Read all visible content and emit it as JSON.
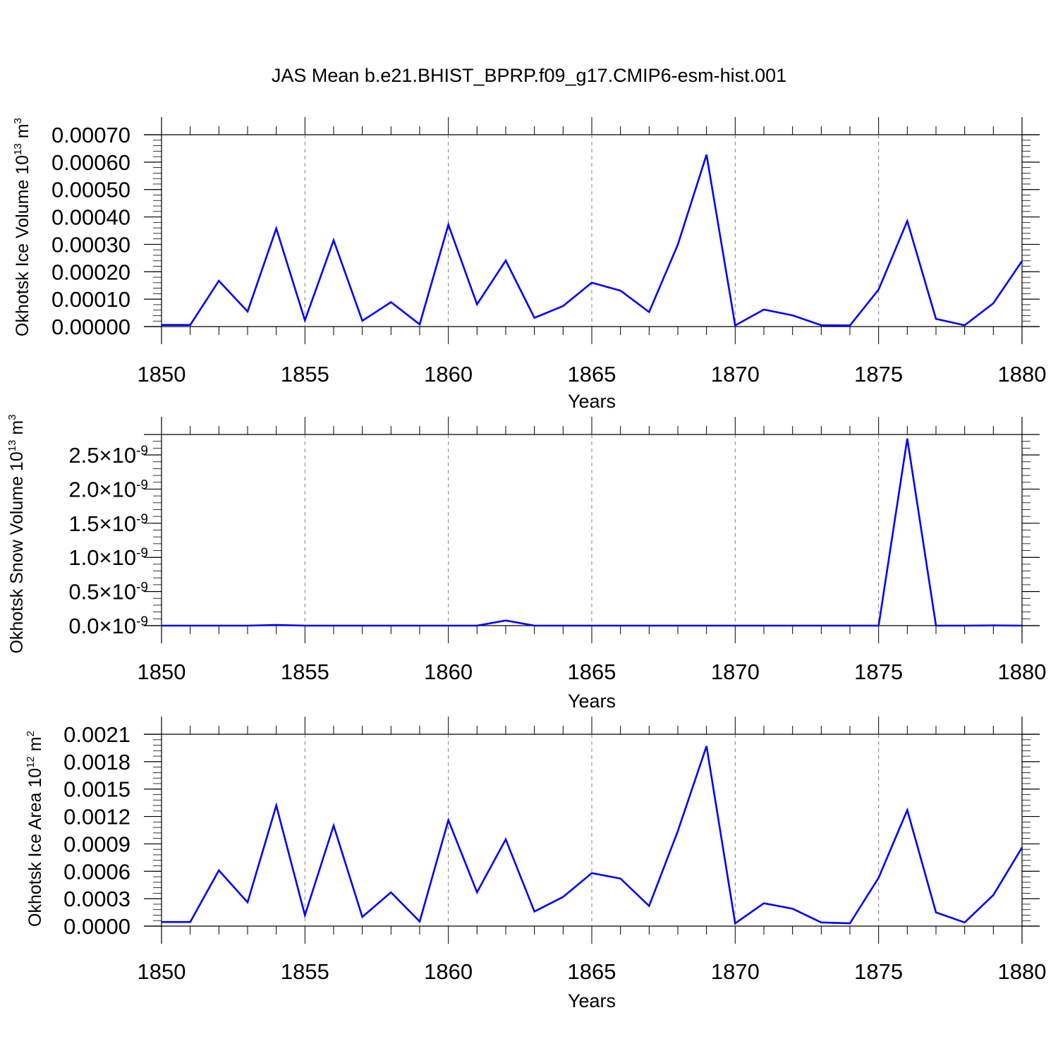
{
  "title": "JAS Mean b.e21.BHIST_BPRP.f09_g17.CMIP6-esm-hist.001",
  "colors": {
    "line": "#0000ff",
    "axis": "#000000",
    "grid": "#7f7f7f",
    "background": "#ffffff"
  },
  "chart_data": [
    {
      "type": "line",
      "ylabel": "Okhotsk Ice Volume 10",
      "ylabel_exp": "13",
      "ylabel_unit": " m",
      "ylabel_unit_exp": "3",
      "xlabel": "Years",
      "xlim": [
        1850,
        1880
      ],
      "ylim": [
        0,
        0.0007
      ],
      "yticks": [
        0,
        0.0001,
        0.0002,
        0.0003,
        0.0004,
        0.0005,
        0.0006,
        0.0007
      ],
      "ytick_labels": [
        "0.00000",
        "0.00010",
        "0.00020",
        "0.00030",
        "0.00040",
        "0.00050",
        "0.00060",
        "0.00070"
      ],
      "xticks": [
        1850,
        1855,
        1860,
        1865,
        1870,
        1875,
        1880
      ],
      "xtick_labels": [
        "1850",
        "1855",
        "1860",
        "1865",
        "1870",
        "1875",
        "1880"
      ],
      "grid": "vertical dashed at 5-year ticks",
      "x": [
        1850,
        1851,
        1852,
        1853,
        1854,
        1855,
        1856,
        1857,
        1858,
        1859,
        1860,
        1861,
        1862,
        1863,
        1864,
        1865,
        1866,
        1867,
        1868,
        1869,
        1870,
        1871,
        1872,
        1873,
        1874,
        1875,
        1876,
        1877,
        1878,
        1879,
        1880
      ],
      "values": [
        6e-06,
        6e-06,
        0.000167,
        5.5e-05,
        0.000358,
        2.3e-05,
        0.000315,
        2.1e-05,
        8.9e-05,
        8e-06,
        0.000372,
        8.1e-05,
        0.000241,
        3.2e-05,
        7.5e-05,
        0.00016,
        0.000131,
        5.3e-05,
        0.000299,
        0.000627,
        4e-06,
        6.2e-05,
        4.1e-05,
        5e-06,
        4e-06,
        0.000135,
        0.000385,
        2.8e-05,
        5e-06,
        8.5e-05,
        0.000239
      ]
    },
    {
      "type": "line",
      "ylabel": "Okhotsk Snow Volume 10",
      "ylabel_exp": "13",
      "ylabel_unit": " m",
      "ylabel_unit_exp": "3",
      "xlabel": "Years",
      "xlim": [
        1850,
        1880
      ],
      "ylim": [
        0,
        2.8e-09
      ],
      "yticks": [
        0,
        5e-10,
        1e-09,
        1.5e-09,
        2e-09,
        2.5e-09
      ],
      "ytick_mantissas": [
        "0.0",
        "0.5",
        "1.0",
        "1.5",
        "2.0",
        "2.5"
      ],
      "ytick_times": "×10",
      "ytick_exp": "-9",
      "xticks": [
        1850,
        1855,
        1860,
        1865,
        1870,
        1875,
        1880
      ],
      "xtick_labels": [
        "1850",
        "1855",
        "1860",
        "1865",
        "1870",
        "1875",
        "1880"
      ],
      "grid": "vertical dashed at 5-year ticks",
      "x": [
        1850,
        1851,
        1852,
        1853,
        1854,
        1855,
        1856,
        1857,
        1858,
        1859,
        1860,
        1861,
        1862,
        1863,
        1864,
        1865,
        1866,
        1867,
        1868,
        1869,
        1870,
        1871,
        1872,
        1873,
        1874,
        1875,
        1876,
        1877,
        1878,
        1879,
        1880
      ],
      "values": [
        0,
        0,
        0,
        0,
        1e-11,
        0,
        0,
        0,
        0,
        0,
        0,
        0,
        7.5e-11,
        0,
        0,
        0,
        0,
        0,
        0,
        0,
        0,
        0,
        0,
        0,
        0,
        0,
        2.74e-09,
        0,
        0,
        3e-12,
        0
      ]
    },
    {
      "type": "line",
      "ylabel": "Okhotsk Ice Area 10",
      "ylabel_exp": "12",
      "ylabel_unit": " m",
      "ylabel_unit_exp": "2",
      "xlabel": "Years",
      "xlim": [
        1850,
        1880
      ],
      "ylim": [
        0,
        0.0021
      ],
      "yticks": [
        0,
        0.0003,
        0.0006,
        0.0009,
        0.0012,
        0.0015,
        0.0018,
        0.0021
      ],
      "ytick_labels": [
        "0.0000",
        "0.0003",
        "0.0006",
        "0.0009",
        "0.0012",
        "0.0015",
        "0.0018",
        "0.0021"
      ],
      "xticks": [
        1850,
        1855,
        1860,
        1865,
        1870,
        1875,
        1880
      ],
      "xtick_labels": [
        "1850",
        "1855",
        "1860",
        "1865",
        "1870",
        "1875",
        "1880"
      ],
      "grid": "vertical dashed at 5-year ticks",
      "x": [
        1850,
        1851,
        1852,
        1853,
        1854,
        1855,
        1856,
        1857,
        1858,
        1859,
        1860,
        1861,
        1862,
        1863,
        1864,
        1865,
        1866,
        1867,
        1868,
        1869,
        1870,
        1871,
        1872,
        1873,
        1874,
        1875,
        1876,
        1877,
        1878,
        1879,
        1880
      ],
      "values": [
        4.5e-05,
        4.5e-05,
        0.00061,
        0.00026,
        0.00132,
        0.00012,
        0.0011,
        0.0001,
        0.00037,
        5e-05,
        0.00116,
        0.00037,
        0.00095,
        0.00016,
        0.00032,
        0.00058,
        0.00052,
        0.00022,
        0.00104,
        0.00197,
        3e-05,
        0.00025,
        0.00019,
        4e-05,
        3e-05,
        0.00053,
        0.00127,
        0.00015,
        4e-05,
        0.00034,
        0.00086
      ]
    }
  ]
}
